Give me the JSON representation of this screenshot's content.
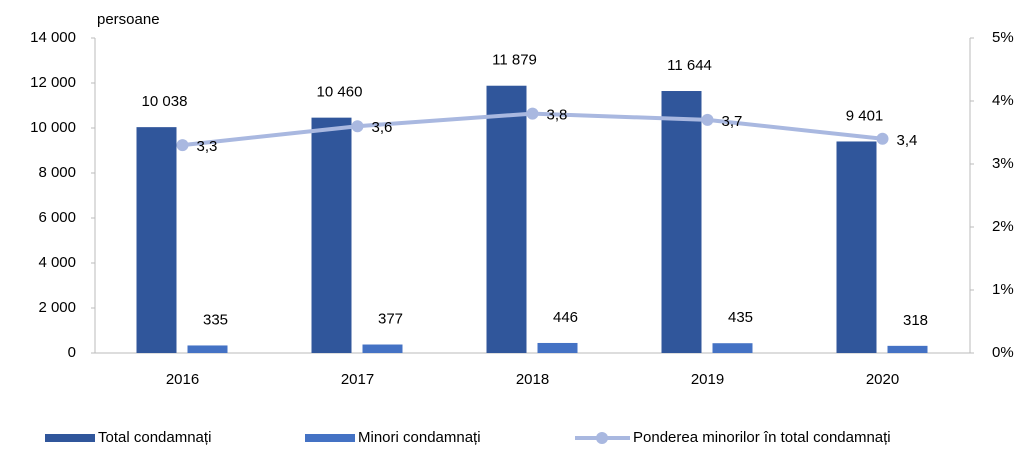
{
  "chart_data": {
    "type": "bar",
    "unit_label": "persoane",
    "categories": [
      "2016",
      "2017",
      "2018",
      "2019",
      "2020"
    ],
    "series": [
      {
        "name": "Total condamnați",
        "color": "#30569b",
        "values": [
          10038,
          10460,
          11879,
          11644,
          9401
        ],
        "value_labels": [
          "10 038",
          "10 460",
          "11 879",
          "11 644",
          "9 401"
        ]
      },
      {
        "name": "Minori condamnați",
        "color": "#4472c4",
        "values": [
          335,
          377,
          446,
          435,
          318
        ]
      },
      {
        "name": "Ponderea minorilor în total condamnați",
        "type": "line",
        "axis": "y2",
        "color": "#a9b8e0",
        "values": [
          3.3,
          3.6,
          3.8,
          3.7,
          3.4
        ],
        "value_labels": [
          "3,3",
          "3,6",
          "3,8",
          "3,7",
          "3,4"
        ]
      }
    ],
    "ylim": [
      0,
      14000
    ],
    "yticks": [
      0,
      {
        "value": 2000,
        "label": "2 000"
      },
      {
        "value": 4000,
        "label": "4 000"
      },
      {
        "value": 6000,
        "label": "6 000"
      },
      {
        "value": 8000,
        "label": "8 000"
      },
      {
        "value": 10000,
        "label": "10 000"
      },
      {
        "value": 12000,
        "label": "12 000"
      },
      {
        "value": 14000,
        "label": "14 000"
      }
    ],
    "y2lim": [
      0,
      5
    ],
    "y2ticks": [
      {
        "value": 0,
        "label": "0%"
      },
      {
        "value": 1,
        "label": "1%"
      },
      {
        "value": 2,
        "label": "2%"
      },
      {
        "value": 3,
        "label": "3%"
      },
      {
        "value": 4,
        "label": "4%"
      },
      {
        "value": 5,
        "label": "5%"
      }
    ],
    "grid": false,
    "legend": "bottom"
  }
}
